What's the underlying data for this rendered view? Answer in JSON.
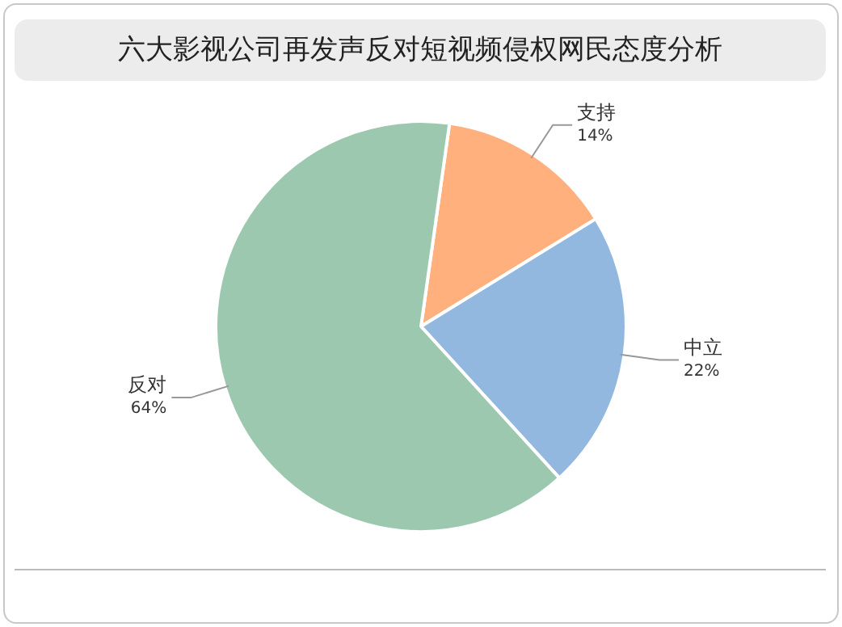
{
  "chart_data": {
    "type": "pie",
    "title": "六大影视公司再发声反对短视频侵权网民态度分析",
    "categories": [
      "支持",
      "中立",
      "反对"
    ],
    "values": [
      14,
      22,
      64
    ],
    "colors": [
      "#ffb07c",
      "#93b8df",
      "#9dc8b0"
    ],
    "value_labels": [
      "14%",
      "22%",
      "64%"
    ],
    "legend": false
  }
}
